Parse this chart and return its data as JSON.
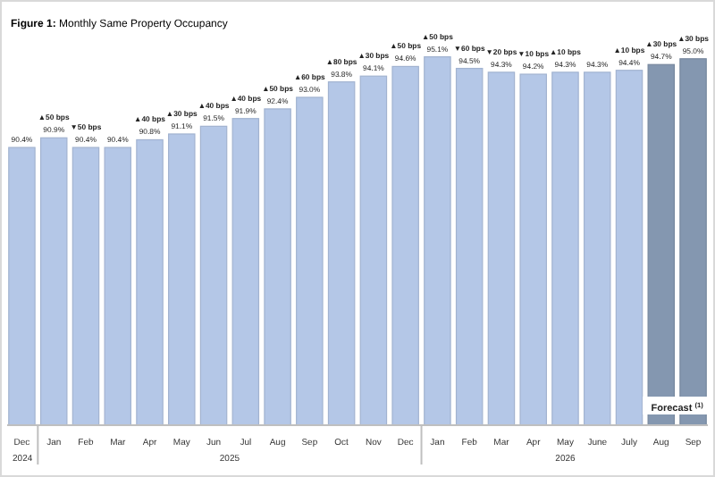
{
  "chart_data": {
    "type": "bar",
    "title": "Figure 1: Monthly Same Property Occupancy",
    "categories": [
      "Dec",
      "Jan",
      "Feb",
      "Mar",
      "Apr",
      "May",
      "Jun",
      "Jul",
      "Aug",
      "Sep",
      "Oct",
      "Nov",
      "Dec",
      "Jan",
      "Feb",
      "Mar",
      "Apr",
      "May",
      "June",
      "July",
      "Aug",
      "Sep"
    ],
    "values": [
      90.4,
      90.9,
      90.4,
      90.4,
      90.8,
      91.1,
      91.5,
      91.9,
      92.4,
      93.0,
      93.8,
      94.1,
      94.6,
      95.1,
      94.5,
      94.3,
      94.2,
      94.3,
      94.3,
      94.4,
      94.7,
      95.0
    ],
    "colors": [
      "#b4c7e7",
      "#b4c7e7",
      "#b4c7e7",
      "#b4c7e7",
      "#b4c7e7",
      "#b4c7e7",
      "#b4c7e7",
      "#b4c7e7",
      "#b4c7e7",
      "#b4c7e7",
      "#b4c7e7",
      "#b4c7e7",
      "#b4c7e7",
      "#b4c7e7",
      "#b4c7e7",
      "#b4c7e7",
      "#b4c7e7",
      "#b4c7e7",
      "#b4c7e7",
      "#b4c7e7",
      "#8497b0",
      "#8497b0"
    ],
    "value_labels": [
      "90.4%",
      "▲50 bps\n90.9%",
      "▼50 bps\n90.4%",
      "90.4%",
      "▲40 bps\n90.8%",
      "▲30 bps\n91.1%",
      "▲40 bps\n91.5%",
      "▲40 bps\n91.9%",
      "▲50 bps\n92.4%",
      "▲60 bps\n93.0%",
      "▲80 bps\n93.8%",
      "▲30 bps\n94.1%",
      "▲50 bps\n94.6%",
      "▲50 bps\n95.1%",
      "▼60 bps\n94.5%",
      "▼20 bps\n94.3%",
      "▼10 bps\n94.2%",
      "▲10 bps\n94.3%",
      "94.3%",
      "▲10 bps\n94.4%",
      "▲30 bps\n94.7%",
      "▲30 bps\n95.0%"
    ],
    "ylim": [
      76,
      98
    ],
    "tick_labels": "x",
    "annotations": [
      "2024",
      "2025",
      "2026",
      "Forecast $^{(1)}$"
    ]
  }
}
